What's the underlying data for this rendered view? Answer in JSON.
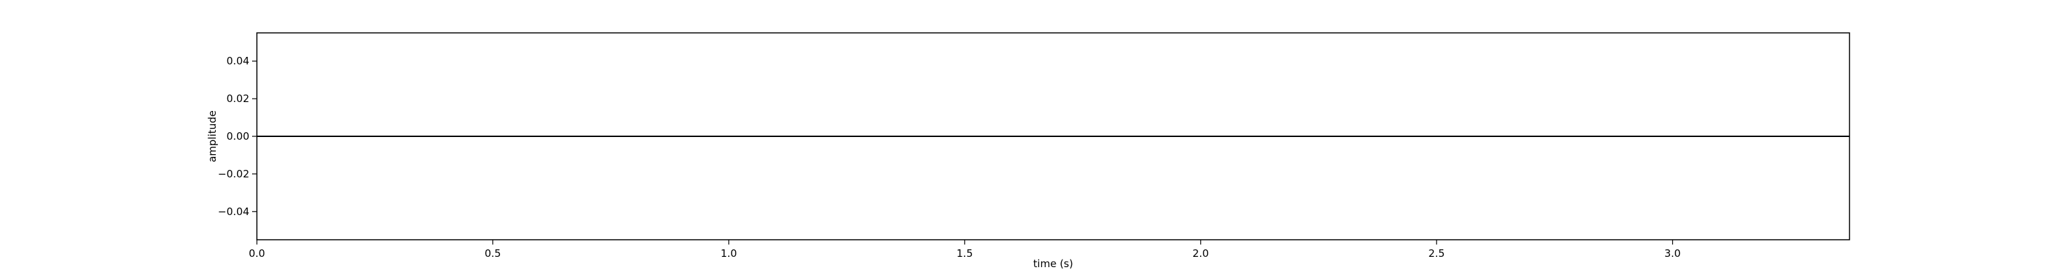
{
  "chart_data": {
    "type": "line",
    "title": "",
    "xlabel": "time (s)",
    "ylabel": "amplitude",
    "xlim": [
      0.0,
      3.375
    ],
    "ylim": [
      -0.055,
      0.055
    ],
    "x_ticks": [
      0.0,
      0.5,
      1.0,
      1.5,
      2.0,
      2.5,
      3.0
    ],
    "x_tick_labels": [
      "0.0",
      "0.5",
      "1.0",
      "1.5",
      "2.0",
      "2.5",
      "3.0"
    ],
    "y_ticks": [
      0.04,
      0.02,
      0.0,
      -0.02,
      -0.04
    ],
    "y_tick_labels": [
      "0.04",
      "0.02",
      "0.00",
      "−0.02",
      "−0.04"
    ],
    "grid": false,
    "legend": "none",
    "series": [
      {
        "x": [
          0.0,
          3.375
        ],
        "y": [
          0.0,
          0.0
        ],
        "color": "#000000"
      }
    ]
  }
}
